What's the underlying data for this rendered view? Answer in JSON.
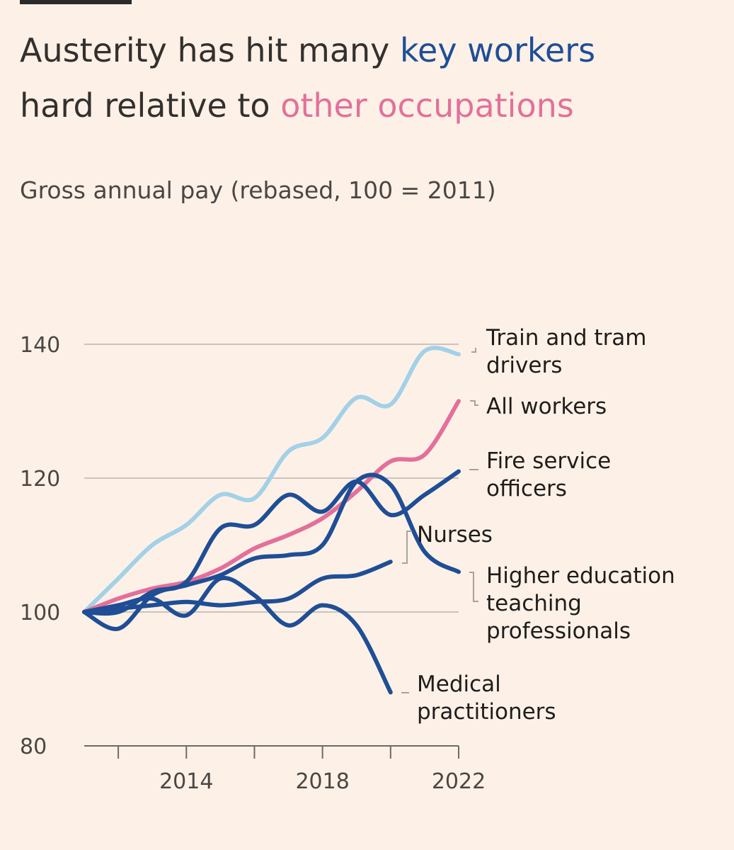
{
  "title": {
    "part1": "Austerity has hit many ",
    "highlight1": "key workers",
    "part2": "hard relative to ",
    "highlight2": "other occupations"
  },
  "subtitle": "Gross annual pay (rebased, 100 = 2011)",
  "colors": {
    "background": "#FDF1E7",
    "key_workers": "#1F4E96",
    "other_occupations": "#E3709A",
    "train_drivers": "#A2D1E8",
    "text": "#33302E",
    "gridline": "#C9C3BE"
  },
  "chart_data": {
    "type": "line",
    "title": "Austerity has hit many key workers hard relative to other occupations",
    "ylabel": "Gross annual pay (rebased, 100 = 2011)",
    "xlabel": "",
    "xlim": [
      2011,
      2022
    ],
    "ylim": [
      80,
      140
    ],
    "yticks": [
      80,
      100,
      120,
      140
    ],
    "xticks": [
      2014,
      2018,
      2022
    ],
    "xtick_marks": [
      2012,
      2014,
      2016,
      2018,
      2020,
      2022
    ],
    "grid": true,
    "series": [
      {
        "name": "Train and tram drivers",
        "label_lines": [
          "Train and tram",
          "drivers"
        ],
        "color": "#A2D1E8",
        "x": [
          2011,
          2012,
          2013,
          2014,
          2015,
          2016,
          2017,
          2018,
          2019,
          2020,
          2021,
          2022
        ],
        "values": [
          100,
          105,
          110,
          113,
          117.5,
          117,
          124,
          126,
          132,
          131,
          139,
          138.5
        ]
      },
      {
        "name": "All workers",
        "label_lines": [
          "All workers"
        ],
        "color": "#E3709A",
        "x": [
          2011,
          2012,
          2013,
          2014,
          2015,
          2016,
          2017,
          2018,
          2019,
          2020,
          2021,
          2022
        ],
        "values": [
          100,
          102,
          103.5,
          104.5,
          106.5,
          109.5,
          111.5,
          114,
          118,
          122.5,
          123.5,
          131.5
        ]
      },
      {
        "name": "Fire service officers",
        "label_lines": [
          "Fire service",
          "officers"
        ],
        "color": "#1F4E96",
        "x": [
          2011,
          2012,
          2013,
          2014,
          2015,
          2016,
          2017,
          2018,
          2019,
          2020,
          2021,
          2022
        ],
        "values": [
          100,
          100,
          103,
          104.5,
          112.5,
          113,
          117.5,
          115,
          119.5,
          114.5,
          117.5,
          121
        ]
      },
      {
        "name": "Nurses",
        "label_lines": [
          "Nurses"
        ],
        "color": "#1F4E96",
        "x": [
          2011,
          2012,
          2013,
          2014,
          2015,
          2016,
          2017,
          2018,
          2019,
          2020
        ],
        "values": [
          100,
          100.5,
          101,
          101.5,
          101,
          101.5,
          102,
          105,
          105.5,
          107.5
        ]
      },
      {
        "name": "Higher education teaching professionals",
        "label_lines": [
          "Higher education",
          "teaching",
          "professionals"
        ],
        "color": "#1F4E96",
        "x": [
          2011,
          2012,
          2013,
          2014,
          2015,
          2016,
          2017,
          2018,
          2019,
          2020,
          2021,
          2022
        ],
        "values": [
          100,
          97.5,
          102.5,
          104,
          105.5,
          108,
          108.5,
          110,
          119.5,
          119,
          109,
          106
        ]
      },
      {
        "name": "Medical practitioners",
        "label_lines": [
          "Medical",
          "practitioners"
        ],
        "color": "#1F4E96",
        "x": [
          2011,
          2012,
          2013,
          2014,
          2015,
          2016,
          2017,
          2018,
          2019,
          2020
        ],
        "values": [
          100,
          101,
          102,
          99.5,
          105,
          102.5,
          98,
          101,
          98,
          88
        ]
      }
    ]
  }
}
